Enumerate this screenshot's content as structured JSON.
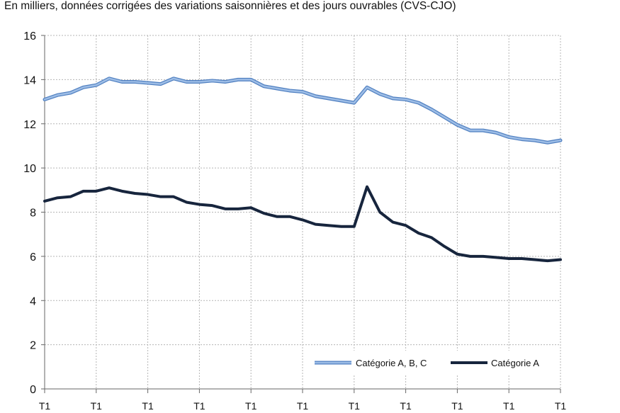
{
  "chart_data": {
    "type": "line",
    "title": "",
    "subtitle": "En milliers, données corrigées des variations saisonnières et des jours ouvrables (CVS-CJO)",
    "xlabel": "",
    "ylabel": "",
    "ylim": [
      0,
      16
    ],
    "yticks": [
      0,
      2,
      4,
      6,
      8,
      10,
      12,
      14,
      16
    ],
    "x_tick_labels": [
      "T1",
      "T1",
      "T1",
      "T1",
      "T1",
      "T1",
      "T1",
      "T1",
      "T1",
      "T1",
      "T1"
    ],
    "grid": true,
    "legend_position": "bottom-right",
    "colors": {
      "series_abc": "#9dbde6",
      "series_abc_edge": "#4f7fc0",
      "series_a": "#17253d"
    },
    "series": [
      {
        "name": "Catégorie A, B, C",
        "values": [
          13.1,
          13.3,
          13.4,
          13.65,
          13.75,
          14.05,
          13.9,
          13.9,
          13.85,
          13.8,
          14.05,
          13.9,
          13.9,
          13.95,
          13.9,
          14.0,
          14.0,
          13.7,
          13.6,
          13.5,
          13.45,
          13.25,
          13.15,
          13.05,
          12.95,
          13.65,
          13.35,
          13.15,
          13.1,
          12.95,
          12.65,
          12.3,
          11.95,
          11.7,
          11.7,
          11.6,
          11.4,
          11.3,
          11.25,
          11.15,
          11.25
        ]
      },
      {
        "name": "Catégorie A",
        "values": [
          8.5,
          8.65,
          8.7,
          8.95,
          8.95,
          9.1,
          8.95,
          8.85,
          8.8,
          8.7,
          8.7,
          8.45,
          8.35,
          8.3,
          8.15,
          8.15,
          8.2,
          7.95,
          7.8,
          7.8,
          7.65,
          7.45,
          7.4,
          7.35,
          7.35,
          9.15,
          8.0,
          7.55,
          7.4,
          7.05,
          6.85,
          6.45,
          6.1,
          6.0,
          6.0,
          5.95,
          5.9,
          5.9,
          5.85,
          5.8,
          5.85
        ]
      }
    ]
  }
}
